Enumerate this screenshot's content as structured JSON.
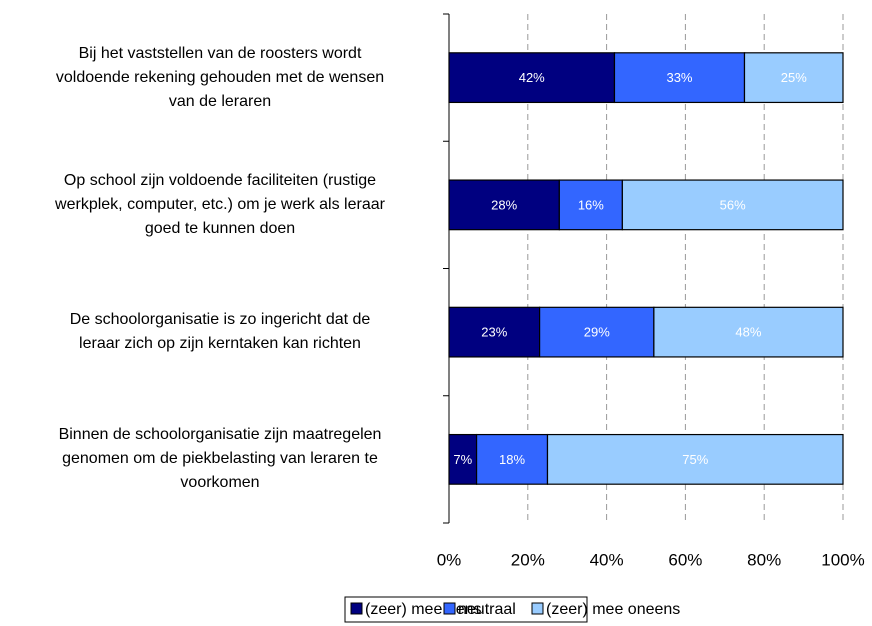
{
  "chart_data": {
    "type": "stacked_barh",
    "categories": [
      "Bij het vaststellen van de roosters wordt\nvoldoende rekening gehouden met de wensen\nvan de leraren",
      "Op school zijn voldoende faciliteiten (rustige\nwerkplek, computer, etc.) om je werk als leraar\ngoed te kunnen doen",
      "De schoolorganisatie is zo ingericht dat de\nleraar zich op zijn kerntaken kan richten",
      "Binnen de schoolorganisatie zijn maatregelen\ngenomen om de piekbelasting van leraren te\nvoorkomen"
    ],
    "series": [
      {
        "name": "(zeer) mee eens",
        "color": "#000080",
        "values": [
          42,
          28,
          23,
          7
        ],
        "value_labels": [
          "42%",
          "28%",
          "23%",
          "7%"
        ]
      },
      {
        "name": "neutraal",
        "color": "#3366ff",
        "values": [
          33,
          16,
          29,
          18
        ],
        "value_labels": [
          "33%",
          "16%",
          "29%",
          "18%"
        ]
      },
      {
        "name": "(zeer) mee oneens",
        "color": "#99ccff",
        "values": [
          25,
          56,
          48,
          75
        ],
        "value_labels": [
          "25%",
          "56%",
          "48%",
          "75%"
        ]
      }
    ],
    "xlim": [
      0,
      100
    ],
    "xticks": [
      {
        "value": 0,
        "label": "0%"
      },
      {
        "value": 20,
        "label": "20%"
      },
      {
        "value": 40,
        "label": "40%"
      },
      {
        "value": 60,
        "label": "60%"
      },
      {
        "value": 80,
        "label": "80%"
      },
      {
        "value": 100,
        "label": "100%"
      }
    ],
    "grid": true,
    "legend": "bottom"
  }
}
